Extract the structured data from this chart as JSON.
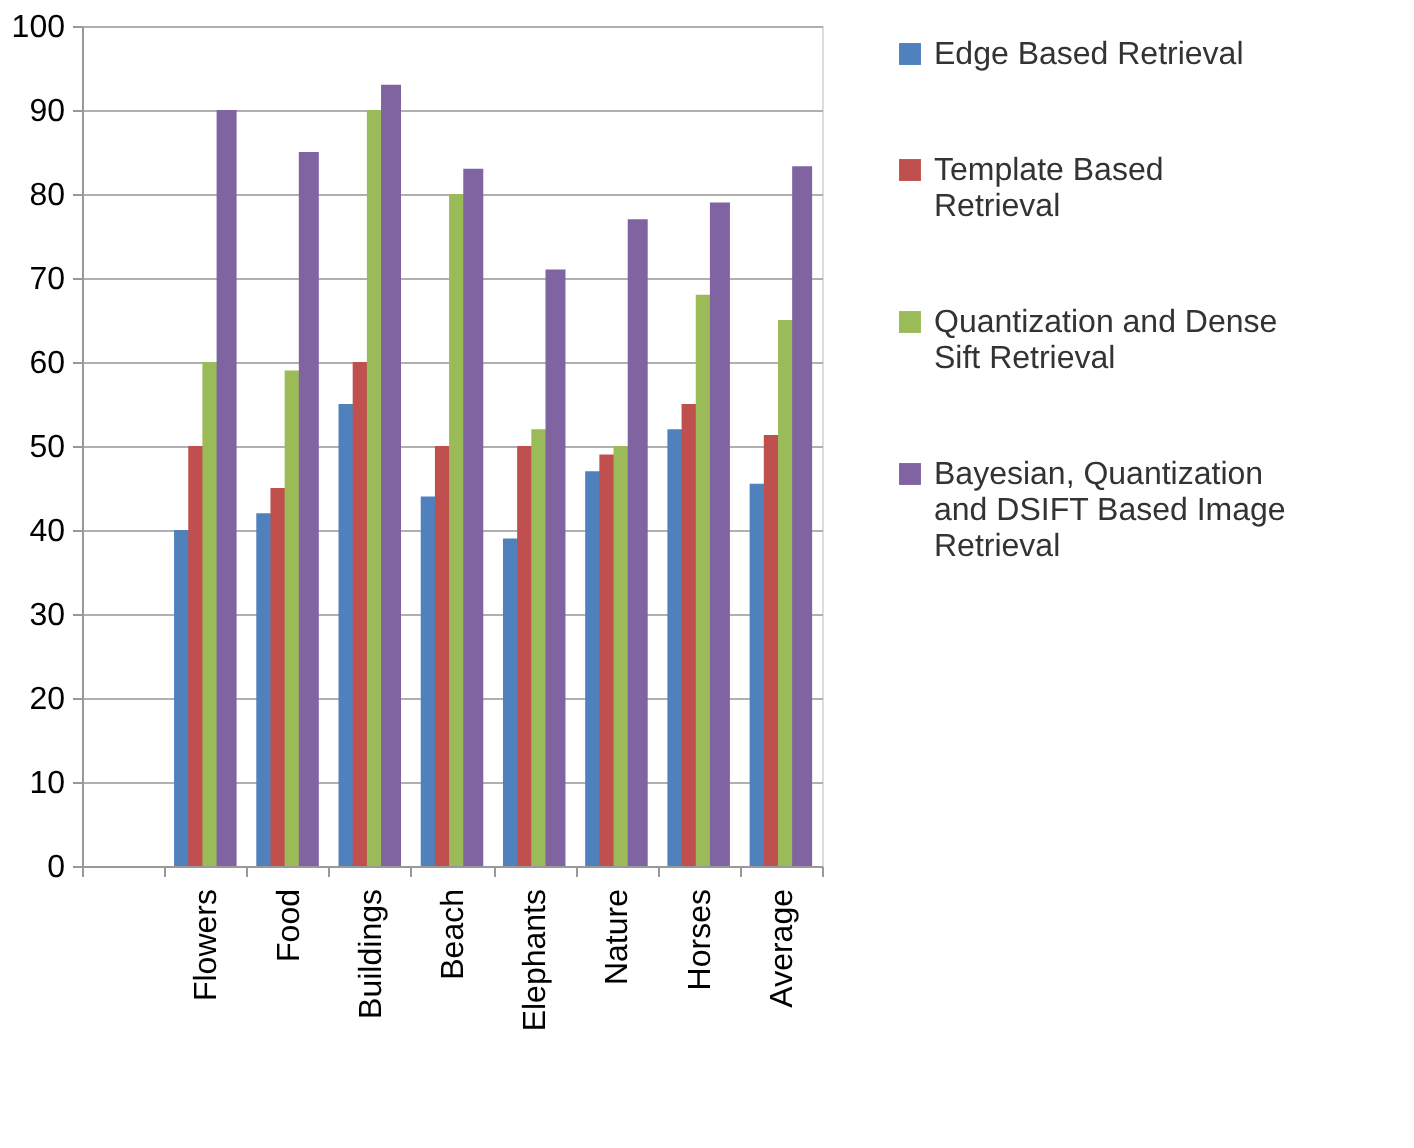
{
  "chart_data": {
    "type": "bar",
    "categories": [
      null,
      "Flowers",
      "Food",
      "Buildings",
      "Beach",
      "Elephants",
      "Nature",
      "Horses",
      "Average"
    ],
    "series": [
      {
        "name": "Edge Based Retrieval",
        "color": "#4f81bd",
        "values": [
          null,
          40,
          42,
          55,
          44,
          39,
          47,
          52,
          45.5
        ]
      },
      {
        "name": "Template Based Retrieval",
        "color": "#c0504d",
        "values": [
          null,
          50,
          45,
          60,
          50,
          50,
          49,
          55,
          51.3
        ]
      },
      {
        "name": "Quantization and Dense Sift Retrieval",
        "color": "#9bbb59",
        "values": [
          null,
          60,
          59,
          90,
          80,
          52,
          50,
          68,
          65
        ]
      },
      {
        "name": "Bayesian, Quantization and DSIFT Based Image Retrieval",
        "color": "#8064a2",
        "values": [
          null,
          90,
          85,
          93,
          83,
          71,
          77,
          79,
          83.3
        ]
      }
    ],
    "ylim": [
      0,
      100
    ],
    "yticks": [
      0,
      10,
      20,
      30,
      40,
      50,
      60,
      70,
      80,
      90,
      100
    ],
    "grid": "y",
    "legend": "right"
  }
}
